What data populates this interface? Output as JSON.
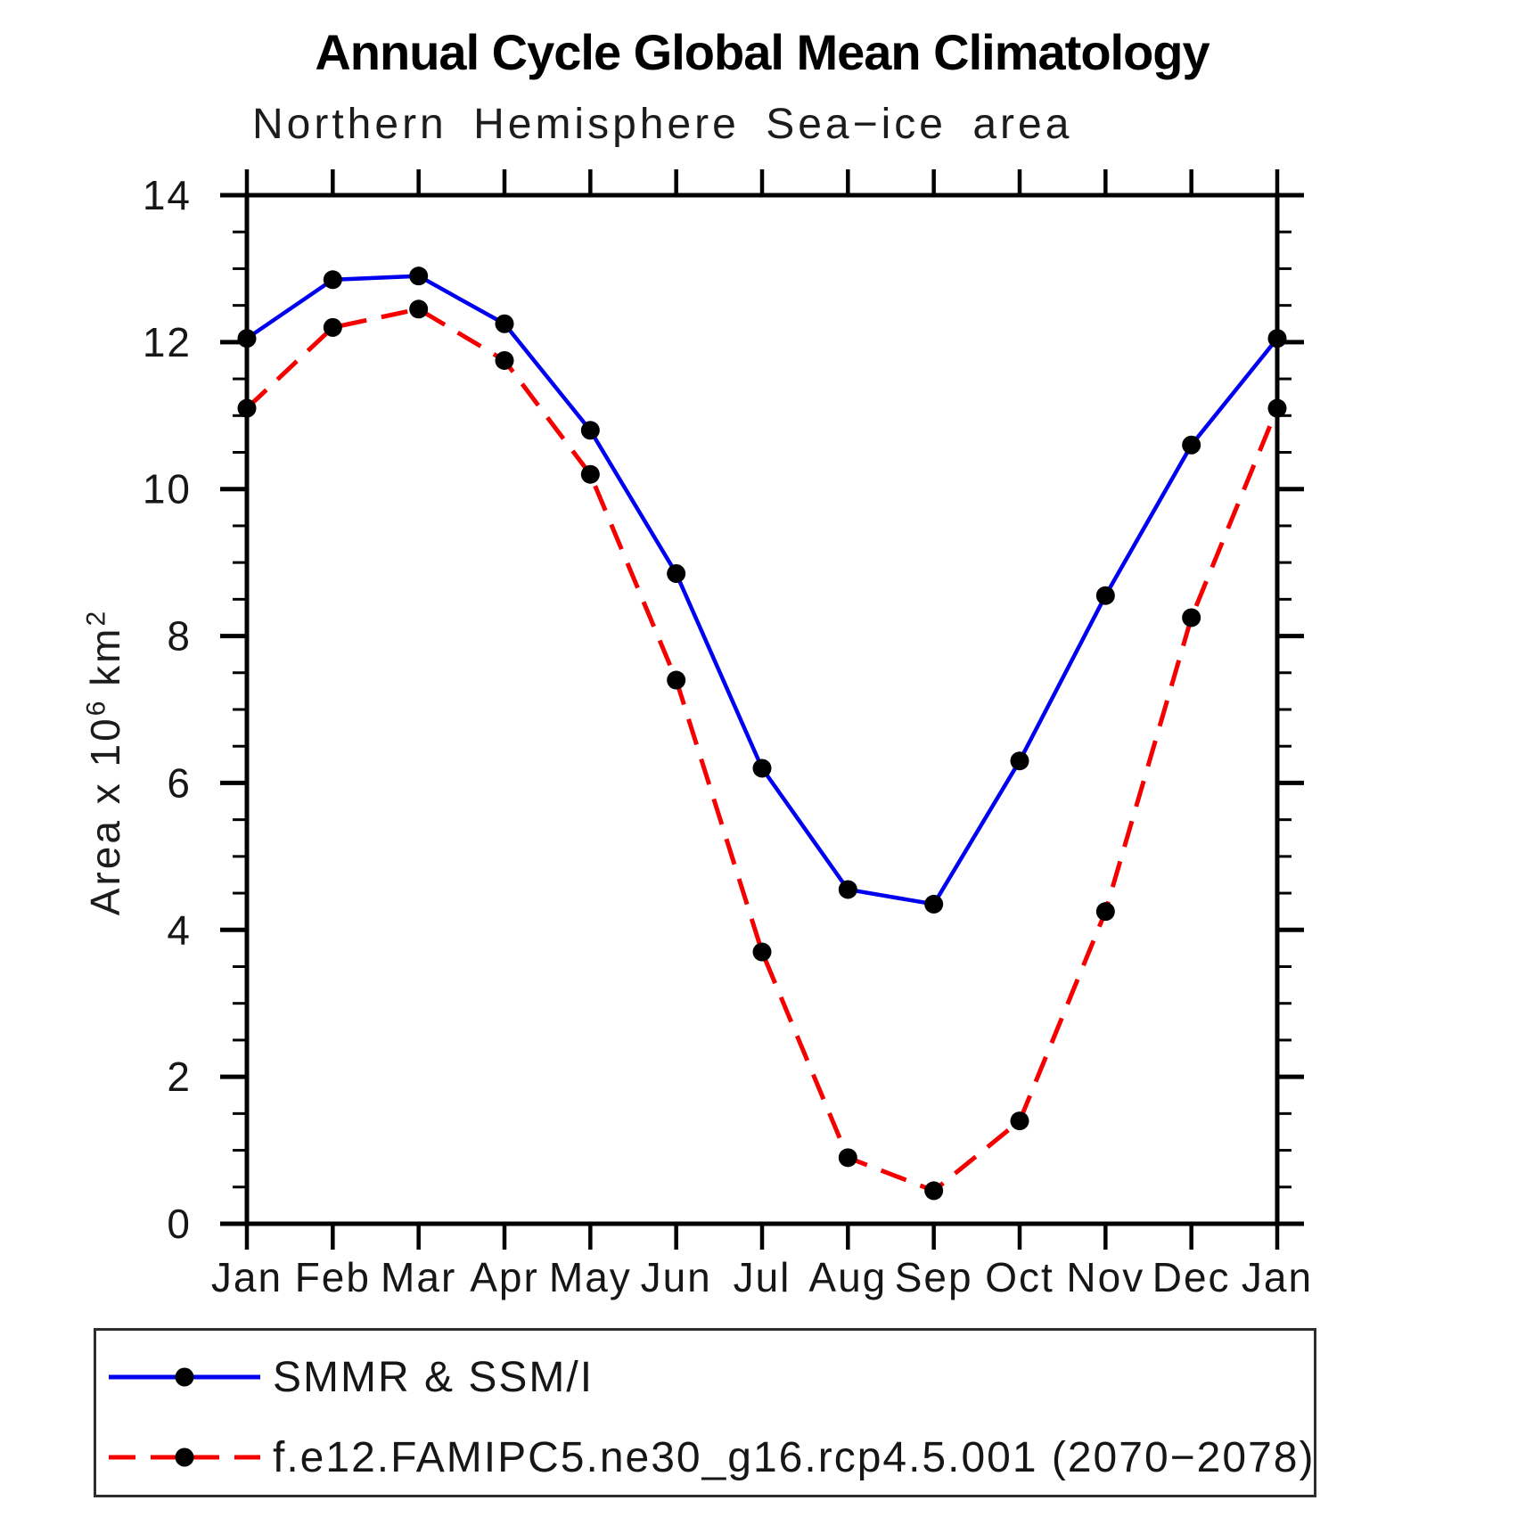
{
  "chart_data": {
    "type": "line",
    "title": "Annual Cycle Global Mean Climatology",
    "subtitle": "Northern Hemisphere Sea−ice area",
    "ylabel_parts": {
      "prefix": "Area x 10",
      "sup1": "6",
      "mid": " km",
      "sup2": "2"
    },
    "x_categories": [
      "Jan",
      "Feb",
      "Mar",
      "Apr",
      "May",
      "Jun",
      "Jul",
      "Aug",
      "Sep",
      "Oct",
      "Nov",
      "Dec",
      "Jan"
    ],
    "ylim": [
      0,
      14
    ],
    "y_major_ticks": [
      0,
      2,
      4,
      6,
      8,
      10,
      12,
      14
    ],
    "y_minor_step": 0.5,
    "grid": false,
    "legend_position": "bottom",
    "axis_color": "#000000",
    "marker_color": "#000000",
    "series": [
      {
        "name": "SMMR & SSM/I",
        "color": "#0000f0",
        "style": "solid",
        "values": [
          12.05,
          12.85,
          12.9,
          12.25,
          10.8,
          8.85,
          6.2,
          4.55,
          4.35,
          6.3,
          8.55,
          10.6,
          12.05
        ]
      },
      {
        "name": "f.e12.FAMIPC5.ne30_g16.rcp4.5.001 (2070−2078)",
        "color": "#f50000",
        "style": "dashed",
        "values": [
          11.1,
          12.2,
          12.45,
          11.75,
          10.2,
          7.4,
          3.7,
          0.9,
          0.45,
          1.4,
          4.25,
          8.25,
          11.1
        ]
      }
    ]
  }
}
